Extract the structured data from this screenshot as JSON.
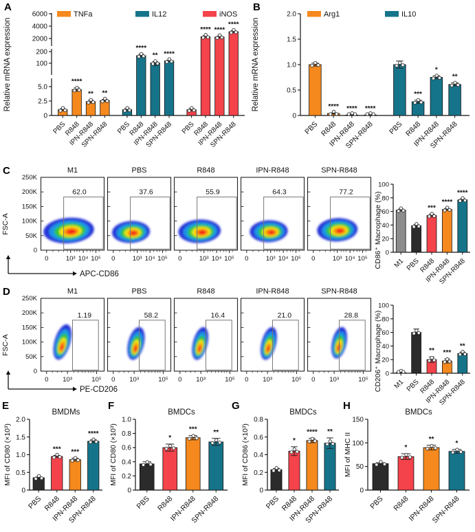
{
  "colors": {
    "orange": "#F5891D",
    "teal": "#16748A",
    "red": "#F4434B",
    "black": "#2B2B2B",
    "gray": "#8C8C8C"
  },
  "panel_labels": {
    "A": "A",
    "B": "B",
    "C": "C",
    "D": "D",
    "E": "E",
    "F": "F",
    "G": "G",
    "H": "H"
  },
  "chart_data": [
    {
      "panel": "A",
      "type": "bar",
      "ylabel": "Relative mRNA expression",
      "categories": [
        "PBS",
        "R848",
        "IPN-R848",
        "SPN-R848"
      ],
      "y_segments": [
        {
          "range": [
            0,
            5
          ],
          "ticks": [
            0,
            2.5,
            5
          ],
          "labels": [
            "0",
            "2.5",
            "5.0"
          ]
        },
        {
          "range": [
            100,
            200
          ],
          "ticks": [
            100,
            200
          ],
          "labels": [
            "100",
            "200"
          ]
        },
        {
          "range": [
            2000,
            6000
          ],
          "ticks": [
            2000,
            4000,
            6000
          ],
          "labels": [
            "2000",
            "4000",
            "6000"
          ]
        }
      ],
      "series": [
        {
          "name": "TNFa",
          "color_key": "orange",
          "values": [
            1.0,
            4.5,
            2.4,
            2.6
          ],
          "errors": [
            0.2,
            0.3,
            0.25,
            0.2
          ],
          "sig": [
            "",
            "****",
            "**",
            "**"
          ]
        },
        {
          "name": "IL12",
          "color_key": "teal",
          "values": [
            1.0,
            165,
            103,
            120
          ],
          "errors": [
            0.2,
            12,
            12,
            6
          ],
          "sig": [
            "",
            "****",
            "**",
            "****"
          ]
        },
        {
          "name": "iNOS",
          "color_key": "red",
          "values": [
            1.0,
            2300,
            2250,
            3100
          ],
          "errors": [
            0.2,
            160,
            160,
            160
          ],
          "sig": [
            "",
            "****",
            "****",
            "****"
          ]
        }
      ]
    },
    {
      "panel": "B",
      "type": "bar",
      "ylabel": "Relative mRNA expression",
      "ylim": [
        0,
        2
      ],
      "yticks": {
        "values": [
          0,
          0.5,
          1,
          1.5,
          2
        ],
        "labels": [
          "0",
          "0.5",
          "1.0",
          "1.5",
          "2.0"
        ]
      },
      "categories": [
        "PBS",
        "R848",
        "IPN-R848",
        "SPN-R848"
      ],
      "series": [
        {
          "name": "Arg1",
          "color_key": "orange",
          "values": [
            1.0,
            0.04,
            0.01,
            0.01
          ],
          "errors": [
            0.03,
            0.012,
            0.005,
            0.005
          ],
          "sig": [
            "",
            "****",
            "****",
            "****"
          ]
        },
        {
          "name": "IL10",
          "color_key": "teal",
          "values": [
            1.0,
            0.27,
            0.75,
            0.61
          ],
          "errors": [
            0.07,
            0.03,
            0.03,
            0.03
          ],
          "sig": [
            "",
            "***",
            "*",
            "**"
          ]
        }
      ]
    },
    {
      "panel": "C_flow",
      "type": "flow",
      "titles": [
        "M1",
        "PBS",
        "R848",
        "IPN-R848",
        "SPN-R848"
      ],
      "gate_percent": [
        "62.0",
        "37.6",
        "55.9",
        "64.3",
        "77.2"
      ],
      "xlabel": "APC-CD86",
      "ylabel": "FSC-A",
      "yticks": [
        "0",
        "50K",
        "100K",
        "150K",
        "200K",
        "250K"
      ],
      "xticks": [
        "0",
        "10³",
        "10⁴",
        "10⁵"
      ]
    },
    {
      "panel": "C_bar",
      "type": "bar",
      "ylabel": "CD86⁺ Macrophage (%)",
      "ylim": [
        0,
        100
      ],
      "yticks": {
        "values": [
          0,
          20,
          40,
          60,
          80,
          100
        ],
        "labels": [
          "0",
          "20",
          "40",
          "60",
          "80",
          "100"
        ]
      },
      "categories": [
        "M1",
        "PBS",
        "R848",
        "IPN-R848",
        "SPN-R848"
      ],
      "values": [
        62,
        39,
        54,
        63,
        77
      ],
      "errors": [
        1.5,
        1.5,
        2,
        1.5,
        1.5
      ],
      "sig": [
        "",
        "",
        "***",
        "****",
        "****"
      ],
      "color_keys": [
        "gray",
        "black",
        "red",
        "orange",
        "teal"
      ]
    },
    {
      "panel": "D_flow",
      "type": "flow",
      "titles": [
        "M1",
        "PBS",
        "R848",
        "IPN-R848",
        "SPN-R848"
      ],
      "gate_percent": [
        "1.19",
        "58.2",
        "16.4",
        "21.0",
        "28.8"
      ],
      "xlabel": "PE-CD206",
      "ylabel": "FSC-A",
      "yticks": [
        "0",
        "50K",
        "100K",
        "150K",
        "200K",
        "250K"
      ],
      "xticks": [
        "0",
        "10³",
        "10⁵"
      ]
    },
    {
      "panel": "D_bar",
      "type": "bar",
      "ylabel": "CD206⁺ Macrophage (%)",
      "ylim": [
        0,
        100
      ],
      "yticks": {
        "values": [
          0,
          20,
          40,
          60,
          80,
          100
        ],
        "labels": [
          "0",
          "20",
          "40",
          "60",
          "80",
          "100"
        ]
      },
      "categories": [
        "M1",
        "PBS",
        "R848",
        "IPN-R848",
        "SPN-R848"
      ],
      "values": [
        1,
        60,
        20,
        18,
        29
      ],
      "errors": [
        0.4,
        5,
        4,
        3,
        2
      ],
      "sig": [
        "",
        "",
        "**",
        "***",
        "**"
      ],
      "color_keys": [
        "gray",
        "black",
        "red",
        "orange",
        "teal"
      ]
    },
    {
      "panel": "E",
      "type": "bar",
      "title": "BMDMs",
      "ylabel": "MFI of CD80 (×10³)",
      "ylim": [
        0,
        2
      ],
      "yticks": {
        "values": [
          0,
          0.5,
          1,
          1.5,
          2
        ],
        "labels": [
          "0",
          "0.5",
          "1.0",
          "1.5",
          "2.0"
        ]
      },
      "categories": [
        "PBS",
        "R848",
        "IPN-R848",
        "SPN-R848"
      ],
      "values": [
        0.35,
        0.95,
        0.86,
        1.38
      ],
      "errors": [
        0.02,
        0.03,
        0.04,
        0.04
      ],
      "sig": [
        "",
        "***",
        "***",
        "****"
      ],
      "color_keys": [
        "black",
        "red",
        "orange",
        "teal"
      ]
    },
    {
      "panel": "F",
      "type": "bar",
      "title": "BMDCs",
      "ylabel": "MFI of CD80 (×10³)",
      "ylim": [
        0,
        1
      ],
      "yticks": {
        "values": [
          0,
          0.2,
          0.4,
          0.6,
          0.8,
          1
        ],
        "labels": [
          "0",
          "0.2",
          "0.4",
          "0.6",
          "0.8",
          "1.0"
        ]
      },
      "categories": [
        "PBS",
        "R848",
        "IPN-R848",
        "SPN-R848"
      ],
      "values": [
        0.37,
        0.6,
        0.74,
        0.68
      ],
      "errors": [
        0.03,
        0.05,
        0.03,
        0.05
      ],
      "sig": [
        "",
        "*",
        "***",
        "**"
      ],
      "color_keys": [
        "black",
        "red",
        "orange",
        "teal"
      ]
    },
    {
      "panel": "G",
      "type": "bar",
      "title": "BMDCs",
      "ylabel": "MFI of CD86 (×10³)",
      "ylim": [
        0,
        0.8
      ],
      "yticks": {
        "values": [
          0,
          0.2,
          0.4,
          0.6,
          0.8
        ],
        "labels": [
          "0",
          "0.2",
          "0.4",
          "0.6",
          "0.8"
        ]
      },
      "categories": [
        "PBS",
        "R848",
        "IPN-R848",
        "SPN-R848"
      ],
      "values": [
        0.23,
        0.44,
        0.56,
        0.53
      ],
      "errors": [
        0.015,
        0.05,
        0.025,
        0.06
      ],
      "sig": [
        "",
        "*",
        "****",
        "**"
      ],
      "color_keys": [
        "black",
        "red",
        "orange",
        "teal"
      ]
    },
    {
      "panel": "H",
      "type": "bar",
      "title": "BMDCs",
      "ylabel": "MFI of MHC II",
      "ylim": [
        0,
        150
      ],
      "yticks": {
        "values": [
          0,
          50,
          100,
          150
        ],
        "labels": [
          "0",
          "50",
          "100",
          "150"
        ]
      },
      "categories": [
        "PBS",
        "R848",
        "IPN-R848",
        "SPN-R848"
      ],
      "values": [
        56,
        71,
        90,
        82
      ],
      "errors": [
        2,
        6,
        5,
        4
      ],
      "sig": [
        "",
        "*",
        "**",
        "*"
      ],
      "color_keys": [
        "black",
        "red",
        "orange",
        "teal"
      ]
    }
  ]
}
